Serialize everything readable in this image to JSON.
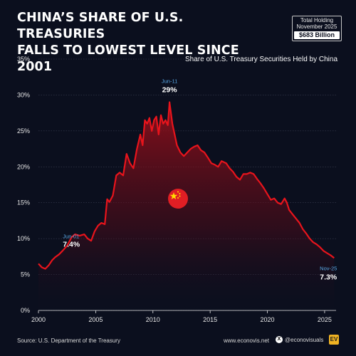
{
  "header": {
    "title_line1": "CHINA’S SHARE OF U.S. TREASURIES",
    "title_line2": "FALLS TO LOWEST LEVEL SINCE 2001",
    "total_holding_label": "Total Holding",
    "total_holding_date": "November 2025",
    "total_holding_value": "$683 Billion"
  },
  "footer": {
    "source": "Source: U.S. Department of the Treasury",
    "website": "www.econovis.net",
    "social": "@econovisuals",
    "logo_text": "EV"
  },
  "colors": {
    "background": "#0b0f1e",
    "line": "#e8141c",
    "annotation_date": "#5aa9e6",
    "grid": "#3a3f52"
  },
  "chart_data": {
    "type": "area",
    "title": "Share of U.S. Treasury Securities Held by China",
    "xlabel": "",
    "ylabel": "",
    "xlim": [
      2000,
      2026
    ],
    "ylim": [
      0,
      35
    ],
    "x_ticks": [
      "2000",
      "2005",
      "2010",
      "2015",
      "2020",
      "2025"
    ],
    "y_ticks": [
      "0%",
      "5%",
      "10%",
      "15%",
      "20%",
      "25%",
      "30%",
      "35%"
    ],
    "grid": true,
    "annotations": [
      {
        "date": "Jun-01",
        "value": "7.4%"
      },
      {
        "date": "Jun-11",
        "value": "29%"
      },
      {
        "date": "Nov-25",
        "value": "7.3%"
      }
    ],
    "series": [
      {
        "values": [
          [
            2000.0,
            6.5
          ],
          [
            2000.3,
            6.0
          ],
          [
            2000.6,
            5.8
          ],
          [
            2000.9,
            6.3
          ],
          [
            2001.2,
            7.0
          ],
          [
            2001.45,
            7.4
          ],
          [
            2001.8,
            7.8
          ],
          [
            2002.1,
            8.3
          ],
          [
            2002.5,
            9.0
          ],
          [
            2002.9,
            10.2
          ],
          [
            2003.2,
            10.6
          ],
          [
            2003.6,
            10.4
          ],
          [
            2004.0,
            10.6
          ],
          [
            2004.3,
            10.0
          ],
          [
            2004.6,
            9.7
          ],
          [
            2004.9,
            11.0
          ],
          [
            2005.2,
            11.8
          ],
          [
            2005.5,
            12.2
          ],
          [
            2005.8,
            12.0
          ],
          [
            2006.0,
            15.5
          ],
          [
            2006.2,
            15.1
          ],
          [
            2006.5,
            16.0
          ],
          [
            2006.8,
            18.8
          ],
          [
            2007.1,
            19.2
          ],
          [
            2007.4,
            18.8
          ],
          [
            2007.7,
            21.8
          ],
          [
            2008.0,
            20.5
          ],
          [
            2008.3,
            19.8
          ],
          [
            2008.6,
            22.5
          ],
          [
            2008.9,
            24.5
          ],
          [
            2009.1,
            23.0
          ],
          [
            2009.3,
            26.5
          ],
          [
            2009.5,
            26.0
          ],
          [
            2009.7,
            26.8
          ],
          [
            2009.9,
            25.0
          ],
          [
            2010.1,
            26.5
          ],
          [
            2010.3,
            27.0
          ],
          [
            2010.5,
            24.5
          ],
          [
            2010.7,
            27.2
          ],
          [
            2010.9,
            26.0
          ],
          [
            2011.1,
            26.5
          ],
          [
            2011.3,
            25.8
          ],
          [
            2011.45,
            29.0
          ],
          [
            2011.7,
            26.0
          ],
          [
            2011.9,
            24.5
          ],
          [
            2012.1,
            23.0
          ],
          [
            2012.4,
            22.0
          ],
          [
            2012.7,
            21.5
          ],
          [
            2013.0,
            22.0
          ],
          [
            2013.3,
            22.5
          ],
          [
            2013.6,
            22.8
          ],
          [
            2013.9,
            23.0
          ],
          [
            2014.2,
            22.3
          ],
          [
            2014.5,
            22.0
          ],
          [
            2014.8,
            21.3
          ],
          [
            2015.1,
            20.5
          ],
          [
            2015.4,
            20.3
          ],
          [
            2015.7,
            20.0
          ],
          [
            2016.0,
            20.8
          ],
          [
            2016.4,
            20.5
          ],
          [
            2016.7,
            19.8
          ],
          [
            2017.0,
            19.3
          ],
          [
            2017.3,
            18.6
          ],
          [
            2017.6,
            18.2
          ],
          [
            2017.9,
            19.0
          ],
          [
            2018.2,
            19.0
          ],
          [
            2018.5,
            19.2
          ],
          [
            2018.8,
            19.0
          ],
          [
            2019.1,
            18.3
          ],
          [
            2019.4,
            17.7
          ],
          [
            2019.7,
            17.0
          ],
          [
            2020.0,
            16.2
          ],
          [
            2020.3,
            15.4
          ],
          [
            2020.6,
            15.6
          ],
          [
            2020.9,
            15.0
          ],
          [
            2021.2,
            14.8
          ],
          [
            2021.5,
            15.6
          ],
          [
            2021.7,
            15.0
          ],
          [
            2021.9,
            14.0
          ],
          [
            2022.2,
            13.4
          ],
          [
            2022.5,
            12.8
          ],
          [
            2022.8,
            12.2
          ],
          [
            2023.1,
            11.3
          ],
          [
            2023.4,
            10.7
          ],
          [
            2023.7,
            10.0
          ],
          [
            2024.0,
            9.5
          ],
          [
            2024.3,
            9.2
          ],
          [
            2024.6,
            8.8
          ],
          [
            2024.9,
            8.3
          ],
          [
            2025.2,
            8.0
          ],
          [
            2025.5,
            7.7
          ],
          [
            2025.83,
            7.3
          ]
        ]
      }
    ]
  }
}
